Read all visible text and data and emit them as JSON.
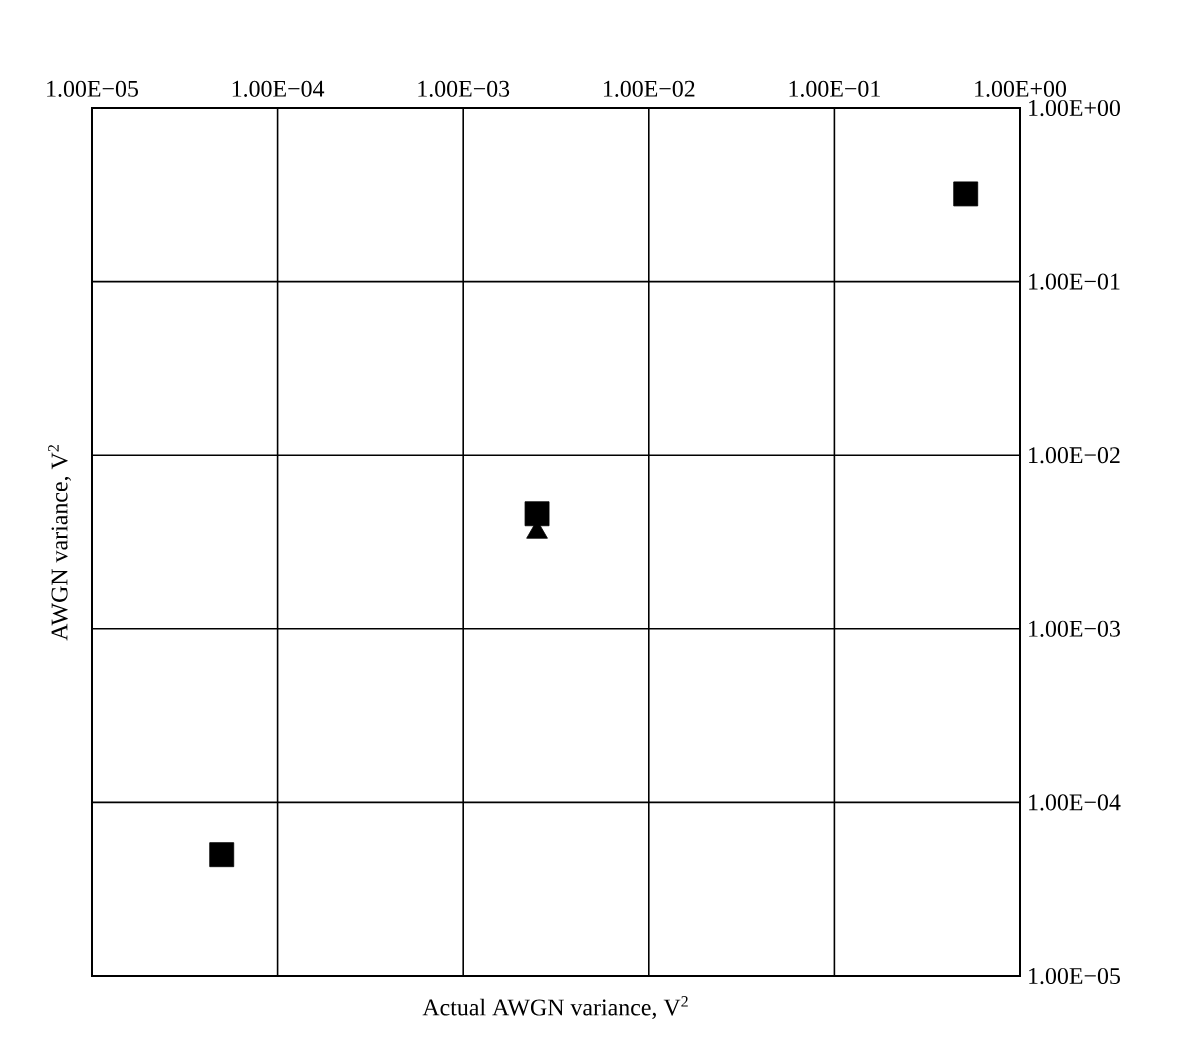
{
  "chart_data": {
    "type": "scatter",
    "xlabel": "Actual AWGN variance, V$^{2}$",
    "ylabel": "AWGN variance, V$^{2}$",
    "log": "xy",
    "grid": true,
    "x": [
      5e-05,
      0.0025,
      0.51
    ],
    "series": [
      {
        "color": "#000000",
        "marker": "triangle",
        "values": [
          null,
          0.0036,
          null
        ]
      },
      {
        "color": "#000000",
        "marker": "square",
        "values": [
          5e-05,
          0.0046,
          0.32
        ]
      }
    ],
    "xlim": [
      1e-05,
      1
    ],
    "ylim": [
      1e-05,
      1
    ],
    "xticks": [
      {
        "value": 1e-05,
        "label": "1.00E−05"
      },
      {
        "value": 0.0001,
        "label": "1.00E−04"
      },
      {
        "value": 0.001,
        "label": "1.00E−03"
      },
      {
        "value": 0.01,
        "label": "1.00E−02"
      },
      {
        "value": 0.1,
        "label": "1.00E−01"
      },
      {
        "value": 1,
        "label": "1.00E+00"
      }
    ],
    "yticks": [
      {
        "value": 1e-05,
        "label": "1.00E−05"
      },
      {
        "value": 0.0001,
        "label": "1.00E−04"
      },
      {
        "value": 0.001,
        "label": "1.00E−03"
      },
      {
        "value": 0.01,
        "label": "1.00E−02"
      },
      {
        "value": 0.1,
        "label": "1.00E−01"
      },
      {
        "value": 1,
        "label": "1.00E+00"
      }
    ]
  }
}
